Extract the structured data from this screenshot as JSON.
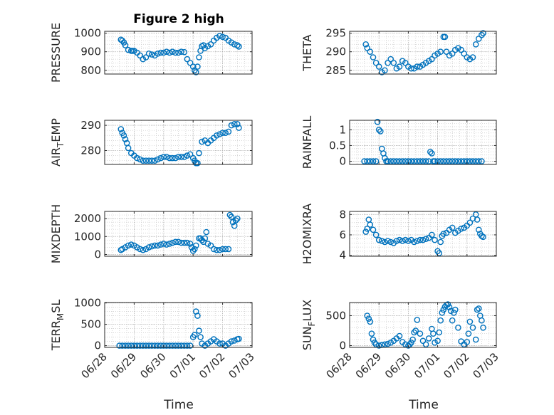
{
  "chart_data": {
    "type": "scatter",
    "title": "Figure 2 high",
    "marker": "circle-open",
    "color": "#0072bd",
    "grid": "on (dotted, minor)",
    "xlabel": "Time",
    "x_ticks": [
      "06/28",
      "06/29",
      "06/30",
      "07/01",
      "07/02",
      "07/03"
    ],
    "xlim": [
      "06/28",
      "07/03"
    ],
    "panels": [
      {
        "id": "pressure",
        "ylabel": "PRESSURE",
        "ylim": [
          780,
          1010
        ],
        "yticks": [
          800,
          900,
          1000
        ],
        "ytick_labels": [
          "800",
          "900",
          "1000"
        ],
        "x": [
          0.55,
          0.6,
          0.65,
          0.7,
          0.8,
          0.9,
          0.95,
          1.0,
          1.1,
          1.2,
          1.3,
          1.4,
          1.5,
          1.6,
          1.7,
          1.8,
          1.9,
          2.0,
          2.1,
          2.2,
          2.3,
          2.4,
          2.5,
          2.6,
          2.7,
          2.8,
          2.9,
          3.0,
          3.05,
          3.1,
          3.15,
          3.2,
          3.25,
          3.3,
          3.35,
          3.4,
          3.5,
          3.6,
          3.7,
          3.8,
          3.9,
          4.0,
          4.1,
          4.2,
          4.3,
          4.4,
          4.5,
          4.55
        ],
        "y": [
          965,
          960,
          950,
          935,
          910,
          905,
          905,
          905,
          895,
          880,
          860,
          870,
          890,
          885,
          880,
          890,
          895,
          895,
          900,
          895,
          900,
          895,
          895,
          900,
          898,
          860,
          840,
          820,
          800,
          790,
          820,
          870,
          905,
          930,
          935,
          920,
          930,
          940,
          960,
          975,
          985,
          980,
          975,
          960,
          950,
          940,
          935,
          928
        ]
      },
      {
        "id": "theta",
        "ylabel": "THETA",
        "ylim": [
          284,
          295.5
        ],
        "yticks": [
          285,
          290,
          295
        ],
        "ytick_labels": [
          "285",
          "290",
          "295"
        ],
        "x": [
          0.55,
          0.6,
          0.7,
          0.8,
          0.9,
          1.0,
          1.1,
          1.2,
          1.3,
          1.4,
          1.5,
          1.6,
          1.7,
          1.8,
          1.9,
          2.0,
          2.1,
          2.2,
          2.3,
          2.4,
          2.5,
          2.6,
          2.7,
          2.8,
          2.9,
          3.0,
          3.1,
          3.2,
          3.25,
          3.3,
          3.4,
          3.5,
          3.6,
          3.7,
          3.8,
          3.9,
          4.0,
          4.1,
          4.2,
          4.3,
          4.4,
          4.5,
          4.55
        ],
        "y": [
          292,
          291,
          290,
          288.5,
          287,
          286,
          284.5,
          285,
          287,
          288,
          287,
          285.5,
          286,
          287.5,
          287,
          286,
          285.5,
          285.5,
          286,
          286,
          286.5,
          287,
          287.5,
          288,
          289,
          289.5,
          290,
          294,
          294,
          290,
          289,
          289.5,
          290.5,
          291,
          290.5,
          289.5,
          288.5,
          288,
          288.5,
          292,
          293.5,
          294.5,
          295
        ]
      },
      {
        "id": "air_temp",
        "ylabel": "AIR_TEMP",
        "ylabel_main": "AIR",
        "ylabel_sub": "T",
        "ylabel_rest": "EMP",
        "ylim": [
          274.5,
          292
        ],
        "yticks": [
          280,
          290
        ],
        "ytick_labels": [
          "280",
          "290"
        ],
        "x": [
          0.55,
          0.6,
          0.65,
          0.7,
          0.75,
          0.8,
          0.9,
          1.0,
          1.1,
          1.2,
          1.3,
          1.4,
          1.5,
          1.6,
          1.7,
          1.8,
          1.9,
          2.0,
          2.1,
          2.2,
          2.3,
          2.4,
          2.5,
          2.6,
          2.7,
          2.8,
          2.9,
          3.0,
          3.05,
          3.1,
          3.15,
          3.2,
          3.3,
          3.4,
          3.5,
          3.6,
          3.7,
          3.8,
          3.9,
          4.0,
          4.1,
          4.2,
          4.3,
          4.4,
          4.5,
          4.55
        ],
        "y": [
          288.5,
          287,
          286,
          284.5,
          283,
          281,
          279,
          278,
          277,
          276.5,
          276,
          276,
          276,
          276,
          276,
          276.5,
          277,
          277.5,
          277.5,
          277,
          277,
          277,
          277.5,
          277.5,
          277.5,
          278,
          278.5,
          277,
          276,
          275,
          275,
          279,
          283.5,
          284,
          283,
          284,
          285,
          286,
          286.5,
          287,
          287,
          287.5,
          290,
          290.5,
          290.5,
          289
        ]
      },
      {
        "id": "rainfall",
        "ylabel": "RAINFALL",
        "ylim": [
          -0.1,
          1.3
        ],
        "yticks": [
          0,
          0.5,
          1
        ],
        "ytick_labels": [
          "0",
          "0.5",
          "1"
        ],
        "x": [
          0.5,
          0.6,
          0.7,
          0.8,
          0.9,
          0.95,
          1.0,
          1.05,
          1.1,
          1.15,
          1.2,
          1.25,
          1.3,
          1.4,
          1.5,
          1.6,
          1.7,
          1.8,
          1.9,
          2.0,
          2.1,
          2.2,
          2.3,
          2.4,
          2.5,
          2.6,
          2.7,
          2.75,
          2.8,
          2.85,
          2.9,
          3.0,
          3.1,
          3.2,
          3.3,
          3.4,
          3.5,
          3.6,
          3.7,
          3.8,
          3.9,
          4.0,
          4.1,
          4.2,
          4.3,
          4.4,
          4.5
        ],
        "y": [
          0,
          0,
          0,
          0,
          0,
          1.25,
          1.0,
          0.95,
          0.4,
          0.25,
          0.1,
          0,
          0,
          0,
          0,
          0,
          0,
          0,
          0,
          0,
          0,
          0,
          0,
          0,
          0,
          0,
          0,
          0.3,
          0.25,
          0,
          0,
          0,
          0,
          0,
          0,
          0,
          0,
          0,
          0,
          0,
          0,
          0,
          0,
          0,
          0,
          0,
          0
        ]
      },
      {
        "id": "mixdepth",
        "ylabel": "MIXDEPTH",
        "ylim": [
          -100,
          2400
        ],
        "yticks": [
          0,
          1000,
          2000
        ],
        "ytick_labels": [
          "0",
          "1000",
          "2000"
        ],
        "x": [
          0.55,
          0.6,
          0.7,
          0.8,
          0.9,
          1.0,
          1.1,
          1.2,
          1.3,
          1.4,
          1.5,
          1.6,
          1.7,
          1.8,
          1.9,
          2.0,
          2.1,
          2.2,
          2.3,
          2.4,
          2.5,
          2.6,
          2.7,
          2.8,
          2.9,
          2.95,
          3.0,
          3.05,
          3.1,
          3.2,
          3.25,
          3.3,
          3.35,
          3.4,
          3.45,
          3.5,
          3.6,
          3.7,
          3.8,
          3.9,
          4.0,
          4.1,
          4.2,
          4.25,
          4.3,
          4.35,
          4.4,
          4.45,
          4.5
        ],
        "y": [
          250,
          300,
          400,
          500,
          550,
          500,
          400,
          300,
          250,
          300,
          400,
          450,
          500,
          500,
          550,
          600,
          550,
          600,
          650,
          700,
          700,
          650,
          650,
          650,
          600,
          400,
          200,
          300,
          500,
          900,
          900,
          800,
          700,
          900,
          1250,
          600,
          500,
          300,
          250,
          250,
          300,
          300,
          300,
          2200,
          2100,
          1800,
          1600,
          1900,
          2000
        ]
      },
      {
        "id": "h2omixra",
        "ylabel": "H2OMIXRA",
        "ylim": [
          3.9,
          8.3
        ],
        "yticks": [
          4,
          6,
          8
        ],
        "ytick_labels": [
          "4",
          "6",
          "8"
        ],
        "x": [
          0.55,
          0.6,
          0.65,
          0.7,
          0.8,
          0.9,
          1.0,
          1.1,
          1.2,
          1.3,
          1.4,
          1.5,
          1.6,
          1.7,
          1.8,
          1.9,
          2.0,
          2.1,
          2.2,
          2.3,
          2.4,
          2.5,
          2.6,
          2.7,
          2.8,
          2.9,
          3.0,
          3.05,
          3.1,
          3.15,
          3.2,
          3.3,
          3.4,
          3.5,
          3.6,
          3.7,
          3.8,
          3.9,
          4.0,
          4.1,
          4.2,
          4.3,
          4.35,
          4.4,
          4.45,
          4.5,
          4.55
        ],
        "y": [
          6.3,
          6.6,
          7.5,
          7.0,
          6.5,
          6.0,
          5.5,
          5.4,
          5.3,
          5.4,
          5.3,
          5.2,
          5.4,
          5.5,
          5.4,
          5.5,
          5.4,
          5.5,
          5.3,
          5.4,
          5.5,
          5.5,
          5.6,
          5.7,
          6.0,
          5.5,
          4.4,
          4.2,
          5.3,
          5.9,
          6.1,
          6.2,
          6.5,
          6.7,
          6.2,
          6.4,
          6.6,
          6.7,
          6.9,
          7.2,
          7.6,
          8.0,
          7.5,
          6.5,
          6.1,
          5.9,
          5.8
        ]
      },
      {
        "id": "terr_msl",
        "ylabel": "TERR_MSL",
        "ylabel_main": "TERR",
        "ylabel_sub": "M",
        "ylabel_rest": "SL",
        "ylim": [
          -40,
          1010
        ],
        "yticks": [
          0,
          500,
          1000
        ],
        "ytick_labels": [
          "0",
          "500",
          "1000"
        ],
        "x": [
          0.5,
          0.6,
          0.7,
          0.8,
          0.9,
          1.0,
          1.1,
          1.2,
          1.3,
          1.4,
          1.5,
          1.6,
          1.7,
          1.8,
          1.9,
          2.0,
          2.1,
          2.2,
          2.3,
          2.4,
          2.5,
          2.6,
          2.7,
          2.8,
          2.9,
          3.0,
          3.05,
          3.1,
          3.15,
          3.2,
          3.25,
          3.3,
          3.4,
          3.5,
          3.6,
          3.7,
          3.8,
          3.9,
          4.0,
          4.1,
          4.2,
          4.3,
          4.4,
          4.5,
          4.55
        ],
        "y": [
          0,
          0,
          0,
          0,
          0,
          0,
          0,
          0,
          0,
          0,
          0,
          0,
          0,
          0,
          0,
          0,
          0,
          0,
          0,
          0,
          0,
          0,
          0,
          0,
          0,
          200,
          250,
          800,
          700,
          350,
          200,
          50,
          0,
          50,
          100,
          150,
          100,
          50,
          50,
          0,
          50,
          100,
          120,
          150,
          160
        ]
      },
      {
        "id": "sun_flux",
        "ylabel": "SUN_FLUX",
        "ylabel_main": "SUN",
        "ylabel_sub": "F",
        "ylabel_rest": "LUX",
        "ylim": [
          -30,
          720
        ],
        "yticks": [
          0,
          500
        ],
        "ytick_labels": [
          "0",
          "500"
        ],
        "x": [
          0.6,
          0.65,
          0.7,
          0.75,
          0.8,
          0.85,
          0.9,
          1.0,
          1.1,
          1.2,
          1.3,
          1.4,
          1.5,
          1.6,
          1.7,
          1.8,
          1.9,
          2.0,
          2.05,
          2.1,
          2.15,
          2.2,
          2.25,
          2.3,
          2.4,
          2.5,
          2.6,
          2.7,
          2.8,
          2.85,
          2.9,
          3.0,
          3.05,
          3.1,
          3.15,
          3.2,
          3.25,
          3.3,
          3.35,
          3.4,
          3.45,
          3.5,
          3.55,
          3.6,
          3.7,
          3.8,
          3.9,
          4.0,
          4.05,
          4.1,
          4.2,
          4.3,
          4.35,
          4.4,
          4.45,
          4.5,
          4.55
        ],
        "y": [
          500,
          450,
          400,
          200,
          100,
          50,
          20,
          0,
          10,
          20,
          30,
          50,
          80,
          120,
          160,
          60,
          20,
          0,
          20,
          50,
          100,
          220,
          250,
          430,
          200,
          80,
          20,
          120,
          280,
          200,
          50,
          80,
          220,
          420,
          550,
          600,
          650,
          680,
          690,
          640,
          580,
          420,
          550,
          600,
          300,
          70,
          20,
          60,
          200,
          400,
          300,
          100,
          600,
          620,
          500,
          420,
          300
        ]
      }
    ]
  }
}
